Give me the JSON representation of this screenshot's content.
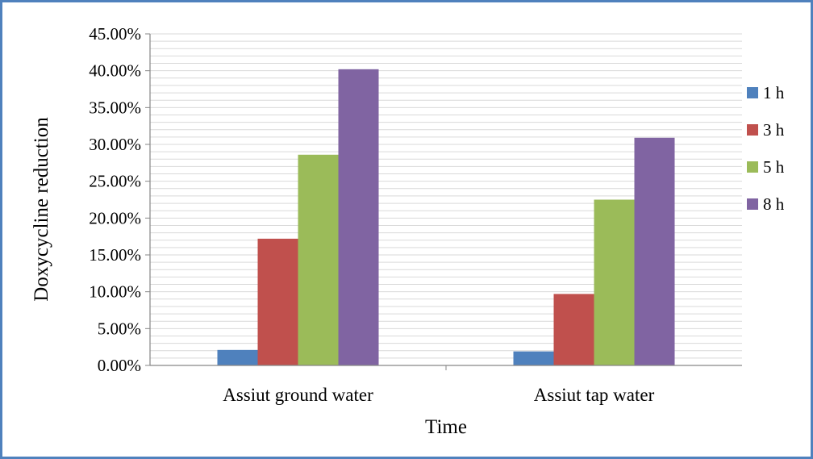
{
  "colors": {
    "frame": "#4f81bd",
    "gridline": "#d9d9d9",
    "axis": "#868686"
  },
  "chart_data": {
    "type": "bar",
    "xlabel": "Time",
    "ylabel": "Doxycycline reduction",
    "categories": [
      "Assiut ground water",
      "Assiut tap water"
    ],
    "series": [
      {
        "name": "1 h",
        "color": "#4f81bd",
        "values": [
          0.021,
          0.019
        ]
      },
      {
        "name": "3 h",
        "color": "#c0504d",
        "values": [
          0.172,
          0.097
        ]
      },
      {
        "name": "5 h",
        "color": "#9bbb59",
        "values": [
          0.286,
          0.225
        ]
      },
      {
        "name": "8 h",
        "color": "#8064a2",
        "values": [
          0.402,
          0.309
        ]
      }
    ],
    "ylim": [
      0,
      0.45
    ],
    "yticks": [
      {
        "value": 0.0,
        "label": "0.00%"
      },
      {
        "value": 0.05,
        "label": "5.00%"
      },
      {
        "value": 0.1,
        "label": "10.00%"
      },
      {
        "value": 0.15,
        "label": "15.00%"
      },
      {
        "value": 0.2,
        "label": "20.00%"
      },
      {
        "value": 0.25,
        "label": "25.00%"
      },
      {
        "value": 0.3,
        "label": "30.00%"
      },
      {
        "value": 0.35,
        "label": "35.00%"
      },
      {
        "value": 0.4,
        "label": "40.00%"
      },
      {
        "value": 0.45,
        "label": "45.00%"
      }
    ],
    "grid": true,
    "legend_position": "right"
  }
}
